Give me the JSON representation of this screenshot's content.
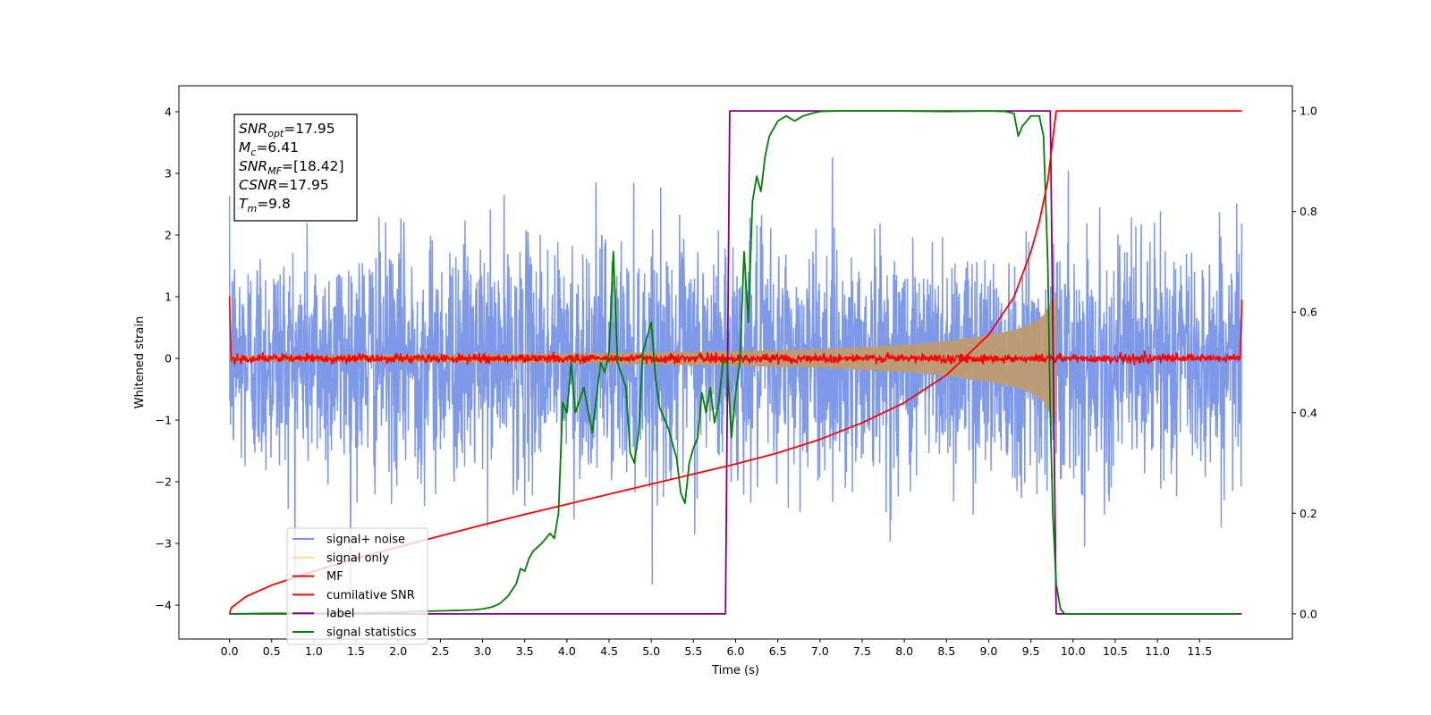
{
  "chart_data": {
    "type": "line",
    "title": "",
    "xlabel": "Time (s)",
    "ylabel": "Whitened strain",
    "y2label": "",
    "xlim": [
      -0.6,
      12.6
    ],
    "ylim": [
      -4.55,
      4.42
    ],
    "y2lim": [
      -0.05,
      1.05
    ],
    "x_ticks": [
      0.0,
      0.5,
      1.0,
      1.5,
      2.0,
      2.5,
      3.0,
      3.5,
      4.0,
      4.5,
      5.0,
      5.5,
      6.0,
      6.5,
      7.0,
      7.5,
      8.0,
      8.5,
      9.0,
      9.5,
      10.0,
      10.5,
      11.0,
      11.5
    ],
    "x_tick_labels": [
      "0.0",
      "0.5",
      "1.0",
      "1.5",
      "2.0",
      "2.5",
      "3.0",
      "3.5",
      "4.0",
      "4.5",
      "5.0",
      "5.5",
      "6.0",
      "6.5",
      "7.0",
      "7.5",
      "8.0",
      "8.5",
      "9.0",
      "9.5",
      "10.0",
      "10.5",
      "11.0",
      "11.5"
    ],
    "y_ticks": [
      -4,
      -3,
      -2,
      -1,
      0,
      1,
      2,
      3,
      4
    ],
    "y_tick_labels": [
      "−4",
      "−3",
      "−2",
      "−1",
      "0",
      "1",
      "2",
      "3",
      "4"
    ],
    "y2_ticks": [
      0.0,
      0.2,
      0.4,
      0.6,
      0.8,
      1.0
    ],
    "y2_tick_labels": [
      "0.0",
      "0.2",
      "0.4",
      "0.6",
      "0.8",
      "1.0"
    ],
    "grid": false,
    "legend_position": "lower-left",
    "annotation": {
      "lines": [
        {
          "var": "SNR",
          "sub": "opt",
          "value": "=17.95"
        },
        {
          "var": "M",
          "sub": "c",
          "value": "=6.41"
        },
        {
          "var": "SNR",
          "sub": "MF",
          "value": "=[18.42]"
        },
        {
          "var": "CSNR",
          "sub": "",
          "value": "=17.95"
        },
        {
          "var": "T",
          "sub": "m",
          "value": "=9.8"
        }
      ]
    },
    "series": [
      {
        "name": "signal+ noise",
        "color": "#7893e8",
        "axis": "left",
        "description_values": {
          "x_start": 0.0,
          "x_end": 12.0,
          "noise_std": 1.0,
          "typical_min": -3.0,
          "typical_max": 3.4
        }
      },
      {
        "name": "signal only",
        "color": "#bf9b70",
        "axis": "left",
        "envelope": {
          "x": [
            0.0,
            2.0,
            4.0,
            6.0,
            7.0,
            8.0,
            8.5,
            9.0,
            9.3,
            9.5,
            9.65,
            9.75,
            9.8
          ],
          "amp": [
            0.05,
            0.06,
            0.08,
            0.12,
            0.15,
            0.22,
            0.28,
            0.38,
            0.46,
            0.56,
            0.7,
            0.95,
            1.1
          ]
        }
      },
      {
        "name": "MF",
        "color": "#ff0000",
        "axis": "left",
        "description_values": {
          "baseline": 0.0,
          "noise_std": 0.04,
          "edge_start": 1.0,
          "edge_end": 0.9
        }
      },
      {
        "name": "cumilative SNR",
        "color": "#ff0000",
        "axis": "right",
        "x": [
          0.0,
          0.02,
          0.2,
          0.5,
          1.0,
          1.5,
          2.0,
          2.5,
          3.0,
          3.5,
          4.0,
          4.5,
          5.0,
          5.5,
          6.0,
          6.5,
          7.0,
          7.5,
          8.0,
          8.5,
          9.0,
          9.3,
          9.5,
          9.6,
          9.7,
          9.75,
          9.8,
          12.0
        ],
        "y": [
          0.0,
          0.012,
          0.035,
          0.057,
          0.085,
          0.11,
          0.133,
          0.155,
          0.177,
          0.198,
          0.218,
          0.238,
          0.258,
          0.278,
          0.298,
          0.32,
          0.347,
          0.38,
          0.42,
          0.475,
          0.555,
          0.63,
          0.72,
          0.78,
          0.86,
          0.93,
          1.0,
          1.0
        ]
      },
      {
        "name": "label",
        "color": "#800080",
        "axis": "right",
        "x": [
          0.0,
          5.88,
          5.93,
          9.73,
          9.8,
          12.0
        ],
        "y": [
          0.0,
          0.0,
          1.0,
          1.0,
          0.0,
          0.0
        ]
      },
      {
        "name": "signal statistics",
        "color": "#008000",
        "axis": "right",
        "x": [
          0.0,
          0.5,
          1.0,
          1.5,
          2.0,
          2.2,
          2.5,
          2.7,
          2.9,
          3.0,
          3.1,
          3.2,
          3.3,
          3.4,
          3.45,
          3.5,
          3.55,
          3.6,
          3.7,
          3.8,
          3.85,
          3.9,
          3.95,
          4.0,
          4.05,
          4.1,
          4.2,
          4.3,
          4.35,
          4.4,
          4.45,
          4.5,
          4.55,
          4.6,
          4.7,
          4.75,
          4.8,
          4.85,
          4.9,
          5.0,
          5.05,
          5.1,
          5.2,
          5.3,
          5.35,
          5.4,
          5.45,
          5.5,
          5.55,
          5.6,
          5.65,
          5.7,
          5.75,
          5.8,
          5.85,
          5.9,
          5.95,
          6.0,
          6.05,
          6.1,
          6.15,
          6.2,
          6.25,
          6.3,
          6.35,
          6.4,
          6.5,
          6.6,
          6.7,
          6.8,
          6.9,
          7.0,
          7.2,
          7.5,
          8.0,
          8.5,
          9.0,
          9.2,
          9.3,
          9.35,
          9.4,
          9.5,
          9.6,
          9.65,
          9.7,
          9.73,
          9.76,
          9.8,
          9.85,
          9.9,
          10.0,
          11.0,
          11.95
        ],
        "y": [
          0.0,
          0.001,
          0.001,
          0.002,
          0.003,
          0.005,
          0.006,
          0.007,
          0.008,
          0.01,
          0.013,
          0.02,
          0.035,
          0.06,
          0.09,
          0.085,
          0.11,
          0.125,
          0.14,
          0.16,
          0.15,
          0.2,
          0.42,
          0.4,
          0.5,
          0.4,
          0.45,
          0.36,
          0.43,
          0.5,
          0.48,
          0.52,
          0.72,
          0.5,
          0.45,
          0.32,
          0.3,
          0.36,
          0.52,
          0.58,
          0.47,
          0.41,
          0.37,
          0.31,
          0.24,
          0.22,
          0.3,
          0.33,
          0.35,
          0.44,
          0.4,
          0.45,
          0.38,
          0.42,
          0.5,
          0.5,
          0.35,
          0.44,
          0.5,
          0.72,
          0.58,
          0.82,
          0.87,
          0.84,
          0.91,
          0.95,
          0.98,
          0.99,
          0.98,
          0.99,
          0.995,
          0.999,
          1.0,
          1.0,
          1.0,
          0.999,
          1.0,
          0.999,
          0.995,
          0.95,
          0.97,
          0.99,
          0.99,
          0.95,
          0.7,
          0.4,
          0.2,
          0.06,
          0.01,
          0.0,
          0.0,
          0.0,
          0.0
        ]
      }
    ]
  }
}
